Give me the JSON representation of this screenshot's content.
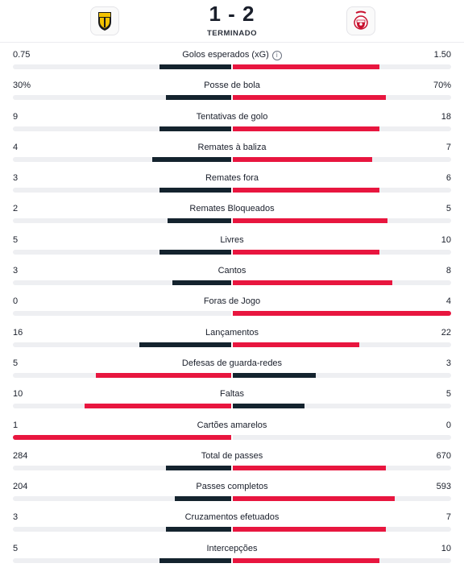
{
  "header": {
    "score": "1 - 2",
    "status": "TERMINADO",
    "home_crest_icon": "sc-farense-crest-icon",
    "away_crest_icon": "benfica-crest-icon"
  },
  "colors": {
    "home": "#14232e",
    "away": "#e8163f",
    "track": "#eeeff2"
  },
  "stats": [
    {
      "label": "Golos esperados (xG)",
      "home": "0.75",
      "away": "1.50",
      "home_frac": 0.33,
      "away_frac": 0.67,
      "info": true
    },
    {
      "label": "Posse de bola",
      "home": "30%",
      "away": "70%",
      "home_frac": 0.3,
      "away_frac": 0.7
    },
    {
      "label": "Tentativas de golo",
      "home": "9",
      "away": "18",
      "home_frac": 0.33,
      "away_frac": 0.67
    },
    {
      "label": "Remates à baliza",
      "home": "4",
      "away": "7",
      "home_frac": 0.36,
      "away_frac": 0.64
    },
    {
      "label": "Remates fora",
      "home": "3",
      "away": "6",
      "home_frac": 0.33,
      "away_frac": 0.67
    },
    {
      "label": "Remates Bloqueados",
      "home": "2",
      "away": "5",
      "home_frac": 0.29,
      "away_frac": 0.71
    },
    {
      "label": "Livres",
      "home": "5",
      "away": "10",
      "home_frac": 0.33,
      "away_frac": 0.67
    },
    {
      "label": "Cantos",
      "home": "3",
      "away": "8",
      "home_frac": 0.27,
      "away_frac": 0.73
    },
    {
      "label": "Foras de Jogo",
      "home": "0",
      "away": "4",
      "home_frac": 0.0,
      "away_frac": 1.0
    },
    {
      "label": "Lançamentos",
      "home": "16",
      "away": "22",
      "home_frac": 0.42,
      "away_frac": 0.58
    },
    {
      "label": "Defesas de guarda-redes",
      "home": "5",
      "away": "3",
      "home_frac": 0.62,
      "away_frac": 0.38
    },
    {
      "label": "Faltas",
      "home": "10",
      "away": "5",
      "home_frac": 0.67,
      "away_frac": 0.33
    },
    {
      "label": "Cartões amarelos",
      "home": "1",
      "away": "0",
      "home_frac": 1.0,
      "away_frac": 0.0
    },
    {
      "label": "Total de passes",
      "home": "284",
      "away": "670",
      "home_frac": 0.3,
      "away_frac": 0.7
    },
    {
      "label": "Passes completos",
      "home": "204",
      "away": "593",
      "home_frac": 0.26,
      "away_frac": 0.74
    },
    {
      "label": "Cruzamentos efetuados",
      "home": "3",
      "away": "7",
      "home_frac": 0.3,
      "away_frac": 0.7
    },
    {
      "label": "Intercepções",
      "home": "5",
      "away": "10",
      "home_frac": 0.33,
      "away_frac": 0.67
    }
  ]
}
